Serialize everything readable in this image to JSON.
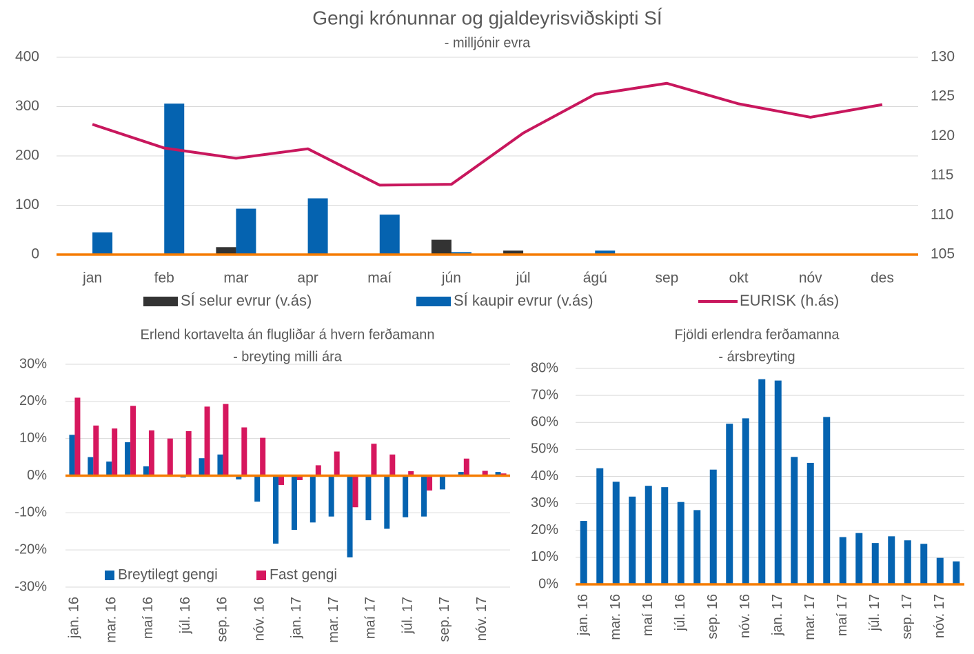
{
  "chart_data": [
    {
      "type": "bar",
      "title": "Gengi krónunnar og gjaldeyrisviðskipti SÍ",
      "subtitle": "- milljónir evra",
      "categories": [
        "jan",
        "feb",
        "mar",
        "apr",
        "maí",
        "jún",
        "júl",
        "ágú",
        "sep",
        "okt",
        "nóv",
        "des"
      ],
      "series": [
        {
          "name": "SÍ selur evrur (v.ás)",
          "color": "#333333",
          "values": [
            0,
            0,
            15,
            0,
            0,
            30,
            8,
            0,
            0,
            0,
            0,
            0
          ]
        },
        {
          "name": "SÍ kaupir evrur (v.ás)",
          "color": "#0563b0",
          "values": [
            45,
            306,
            93,
            114,
            81,
            5,
            0,
            8,
            0,
            0,
            0,
            0
          ]
        },
        {
          "name": "EURISK (h.ás)",
          "color": "#c8175d",
          "type": "line",
          "axis": "y2",
          "values": [
            121.5,
            118.5,
            117.2,
            118.4,
            113.8,
            113.9,
            120.4,
            125.3,
            126.7,
            124.1,
            122.4,
            124.0
          ]
        }
      ],
      "ylim": [
        0,
        400
      ],
      "yticks": [
        0,
        100,
        200,
        300,
        400
      ],
      "y2lim": [
        105,
        130
      ],
      "y2ticks": [
        105,
        110,
        115,
        120,
        125,
        130
      ],
      "grid": true,
      "legend": "bottom"
    },
    {
      "type": "bar",
      "title": "Erlend kortavelta án flugliðar á hvern ferðamann",
      "subtitle": "- breyting milli ára",
      "categories": [
        "jan. 16",
        null,
        "mar. 16",
        null,
        "maí 16",
        null,
        "júl. 16",
        null,
        "sep. 16",
        null,
        "nóv. 16",
        null,
        "jan. 17",
        null,
        "mar. 17",
        null,
        "maí 17",
        null,
        "júl. 17",
        null,
        "sep. 17",
        null,
        "nóv. 17",
        null
      ],
      "series": [
        {
          "name": "Breytilegt gengi",
          "color": "#0563b0",
          "values": [
            11,
            5,
            3.8,
            9,
            2.5,
            0,
            -0.5,
            4.7,
            5.7,
            -1,
            -7,
            -18.3,
            -14.6,
            -12.6,
            -11,
            -22,
            -12,
            -14.3,
            -11.2,
            -11,
            -3.7,
            1,
            0,
            1
          ]
        },
        {
          "name": "Fast gengi",
          "color": "#d6175e",
          "values": [
            21,
            13.5,
            12.7,
            18.8,
            12.2,
            10,
            12,
            18.6,
            19.3,
            13,
            10.2,
            -2.5,
            -1.2,
            2.8,
            6.5,
            -8.5,
            8.6,
            5.7,
            1.2,
            -4,
            0,
            4.6,
            1.3,
            0.6
          ]
        }
      ],
      "ylim": [
        -30,
        30
      ],
      "yticks": [
        {
          "value": -30,
          "label": "-30%"
        },
        {
          "value": -20,
          "label": "-20%"
        },
        {
          "value": -10,
          "label": "-10%"
        },
        {
          "value": 0,
          "label": "0%"
        },
        {
          "value": 10,
          "label": "10%"
        },
        {
          "value": 20,
          "label": "20%"
        },
        {
          "value": 30,
          "label": "30%"
        }
      ],
      "grid": true,
      "legend": "lower left"
    },
    {
      "type": "bar",
      "title": "Fjöldi erlendra ferðamanna",
      "subtitle": "- ársbreyting",
      "categories": [
        "jan. 16",
        null,
        "mar. 16",
        null,
        "maí 16",
        null,
        "júl. 16",
        null,
        "sep. 16",
        null,
        "nóv. 16",
        null,
        "jan. 17",
        null,
        "mar. 17",
        null,
        "maí 17",
        null,
        "júl. 17",
        null,
        "sep. 17",
        null,
        "nóv. 17",
        null
      ],
      "values": [
        23.5,
        43,
        38,
        32.5,
        36.5,
        36,
        30.5,
        27.5,
        42.5,
        59.5,
        61.5,
        76,
        75.5,
        47.2,
        45,
        62,
        17.5,
        19,
        15.3,
        17.8,
        16.3,
        15,
        9.8,
        8.5
      ],
      "color": "#0563b0",
      "ylim": [
        0,
        80
      ],
      "yticks": [
        {
          "value": 0,
          "label": "0%"
        },
        {
          "value": 10,
          "label": "10%"
        },
        {
          "value": 20,
          "label": "20%"
        },
        {
          "value": 30,
          "label": "30%"
        },
        {
          "value": 40,
          "label": "40%"
        },
        {
          "value": 50,
          "label": "50%"
        },
        {
          "value": 60,
          "label": "60%"
        },
        {
          "value": 70,
          "label": "70%"
        },
        {
          "value": 80,
          "label": "80%"
        }
      ],
      "grid": true
    }
  ]
}
